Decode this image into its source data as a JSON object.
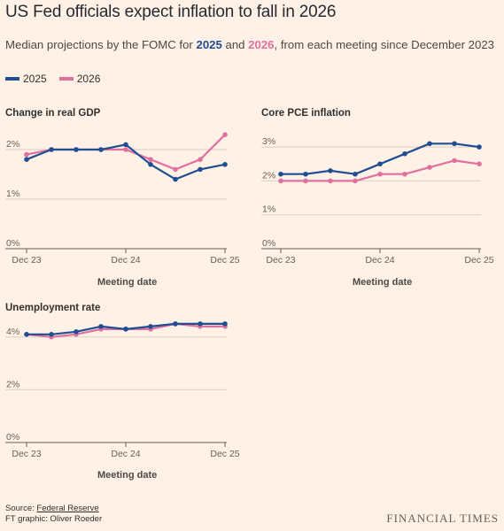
{
  "title": "US Fed officials expect inflation to fall in 2026",
  "subtitle": {
    "pre": "Median projections by the FOMC for ",
    "k1": "2025",
    "mid": " and ",
    "k2": "2026",
    "post": ", from each meeting since December 2023"
  },
  "legend": [
    {
      "label": "2025",
      "color": "#1f4e93"
    },
    {
      "label": "2026",
      "color": "#e0719f"
    }
  ],
  "colors": {
    "s2025": "#1f4e93",
    "s2026": "#e0719f"
  },
  "source_label": "Source: ",
  "source_link": "Federal Reserve",
  "credit": "FT graphic: Oliver Roeder",
  "brand": "FINANCIAL TIMES",
  "chart_data": [
    {
      "type": "line",
      "title": "Change in real GDP",
      "xlabel": "Meeting date",
      "x": [
        "Dec 23",
        "Mar 24",
        "Jun 24",
        "Sep 24",
        "Dec 24",
        "Mar 25",
        "Jun 25",
        "Sep 25",
        "Dec 25"
      ],
      "xticks": [
        "Dec 23",
        "Dec 24",
        "Dec 25"
      ],
      "ylim": [
        0,
        2.2
      ],
      "yticks": [
        0,
        1,
        2
      ],
      "ytick_labels": [
        "0%",
        "1%",
        "2%"
      ],
      "series": [
        {
          "name": "2025",
          "values": [
            1.8,
            2.0,
            2.0,
            2.0,
            2.1,
            1.7,
            1.4,
            1.6,
            1.7
          ]
        },
        {
          "name": "2026",
          "values": [
            1.9,
            2.0,
            2.0,
            2.0,
            2.0,
            1.8,
            1.6,
            1.8,
            2.3
          ]
        }
      ]
    },
    {
      "type": "line",
      "title": "Core PCE inflation",
      "xlabel": "Meeting date",
      "x": [
        "Dec 23",
        "Mar 24",
        "Jun 24",
        "Sep 24",
        "Dec 24",
        "Mar 25",
        "Jun 25",
        "Sep 25",
        "Dec 25"
      ],
      "xticks": [
        "Dec 23",
        "Dec 24",
        "Dec 25"
      ],
      "ylim": [
        0,
        3.1
      ],
      "yticks": [
        0,
        1,
        2,
        3
      ],
      "ytick_labels": [
        "0%",
        "1%",
        "2%",
        "3%"
      ],
      "series": [
        {
          "name": "2025",
          "values": [
            2.2,
            2.2,
            2.3,
            2.2,
            2.5,
            2.8,
            3.1,
            3.1,
            3.0
          ]
        },
        {
          "name": "2026",
          "values": [
            2.0,
            2.0,
            2.0,
            2.0,
            2.2,
            2.2,
            2.4,
            2.6,
            2.5
          ]
        }
      ]
    },
    {
      "type": "line",
      "title": "Unemployment rate",
      "xlabel": "Meeting date",
      "x": [
        "Dec 23",
        "Mar 24",
        "Jun 24",
        "Sep 24",
        "Dec 24",
        "Mar 25",
        "Jun 25",
        "Sep 25",
        "Dec 25"
      ],
      "xticks": [
        "Dec 23",
        "Dec 24",
        "Dec 25"
      ],
      "ylim": [
        0,
        4.4
      ],
      "yticks": [
        0,
        2,
        4
      ],
      "ytick_labels": [
        "0%",
        "2%",
        "4%"
      ],
      "series": [
        {
          "name": "2025",
          "values": [
            4.1,
            4.1,
            4.2,
            4.4,
            4.3,
            4.4,
            4.5,
            4.5,
            4.5
          ]
        },
        {
          "name": "2026",
          "values": [
            4.1,
            4.0,
            4.1,
            4.3,
            4.3,
            4.3,
            4.5,
            4.4,
            4.4
          ]
        }
      ]
    }
  ]
}
